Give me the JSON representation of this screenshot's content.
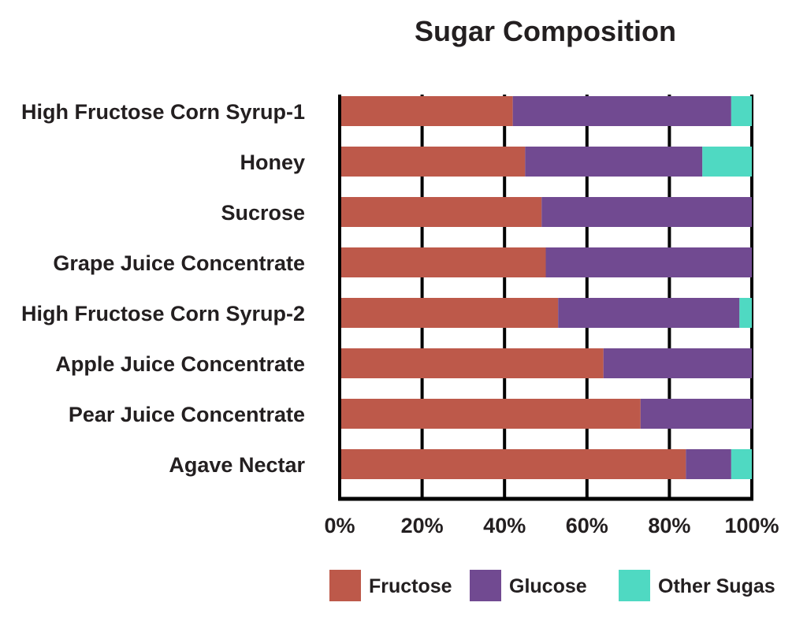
{
  "chart_data": {
    "type": "bar",
    "orientation": "horizontal",
    "stacked": true,
    "title": "Sugar Composition",
    "categories": [
      "High Fructose Corn Syrup-1",
      "Honey",
      "Sucrose",
      "Grape Juice Concentrate",
      "High Fructose Corn Syrup-2",
      "Apple Juice Concentrate",
      "Pear Juice Concentrate",
      "Agave Nectar"
    ],
    "series": [
      {
        "name": "Fructose",
        "color": "#bd594a",
        "values": [
          42,
          45,
          49,
          50,
          53,
          64,
          73,
          84
        ]
      },
      {
        "name": "Glucose",
        "color": "#714a91",
        "values": [
          53,
          43,
          51,
          50,
          44,
          36,
          27,
          11
        ]
      },
      {
        "name": "Other Sugas",
        "color": "#4fd9c2",
        "values": [
          5,
          12,
          0,
          0,
          3,
          0,
          0,
          5
        ]
      }
    ],
    "xlim": [
      0,
      100
    ],
    "xticks": [
      "0%",
      "20%",
      "40%",
      "60%",
      "80%",
      "100%"
    ],
    "grid": "vertical",
    "legend": "bottom"
  }
}
